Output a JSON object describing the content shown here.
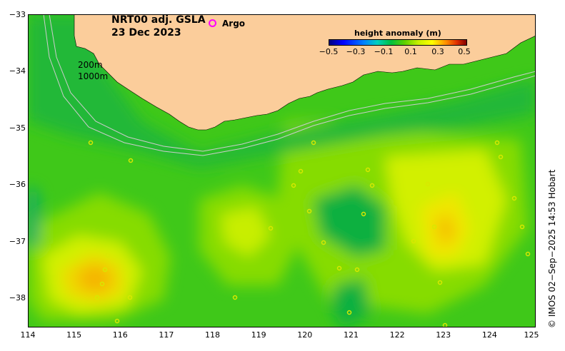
{
  "title": {
    "line1": "NRT00 adj. GSLA",
    "line2": "23 Dec 2023"
  },
  "legend": {
    "argo_label": "Argo",
    "argo_color": "#ff00ff"
  },
  "contours": {
    "label_200": "200m",
    "label_1000": "1000m"
  },
  "colorbar": {
    "title": "height anomaly (m)",
    "ticks": [
      "−0.5",
      "−0.3",
      "−0.1",
      "0.1",
      "0.3",
      "0.5"
    ]
  },
  "axes": {
    "x_ticks": [
      "114",
      "115",
      "116",
      "117",
      "118",
      "119",
      "120",
      "121",
      "122",
      "123",
      "124",
      "125"
    ],
    "y_ticks": [
      "−33",
      "−34",
      "−35",
      "−36",
      "−37",
      "−38"
    ]
  },
  "credit": "© IMOS 02−Sep−2025 14:53 Hobart",
  "colors": {
    "land": "#fbcd9b",
    "ocean_green": "#3fc819",
    "ocean_light": "#8fe000",
    "ocean_yellow": "#e8f500",
    "ocean_orange": "#f5b800",
    "ocean_teal": "#10b860"
  }
}
